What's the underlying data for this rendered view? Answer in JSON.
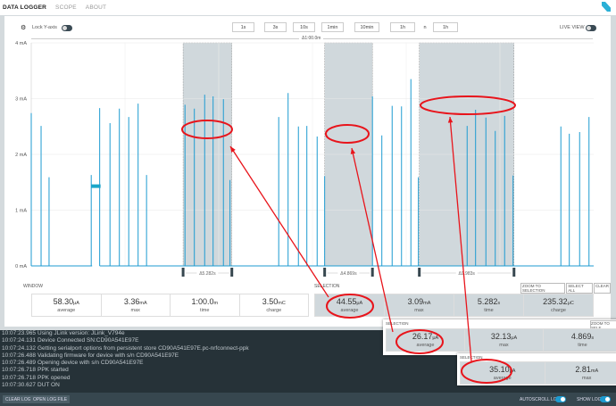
{
  "nav": {
    "tabs": [
      {
        "label": "DATA LOGGER",
        "active": true
      },
      {
        "label": "SCOPE"
      },
      {
        "label": "ABOUT"
      }
    ]
  },
  "toolbar": {
    "lock_y_label": "Lock Y-axis",
    "lock_y_on": false,
    "live_view_label": "LIVE VIEW",
    "live_view_on": false,
    "time_buttons": [
      "1s",
      "3s",
      "10s",
      "1min",
      "10min",
      "1h"
    ],
    "extra_buttons": [
      "n",
      "1h"
    ],
    "window_span": "Δ1:00.0m"
  },
  "chart_data": {
    "type": "line",
    "ylabel": "",
    "yticks": [
      "0 mA",
      "1 mA",
      "2 mA",
      "3 mA",
      "4 mA"
    ],
    "ylim": [
      0,
      4
    ],
    "xlim": [
      0,
      60
    ],
    "x_unit": "s",
    "grid": true,
    "color": "#1d9bd1",
    "spikes": [
      [
        0,
        2.74
      ],
      [
        1.05,
        2.51
      ],
      [
        1.9,
        1.59
      ],
      [
        6.4,
        1.63
      ],
      [
        7.3,
        2.83
      ],
      [
        8.4,
        2.56
      ],
      [
        9.4,
        2.82
      ],
      [
        10.4,
        2.67
      ],
      [
        11.4,
        2.91
      ],
      [
        12.3,
        1.63
      ],
      [
        16.4,
        2.89
      ],
      [
        17.4,
        2.82
      ],
      [
        18.5,
        3.07
      ],
      [
        19.4,
        3.04
      ],
      [
        20.5,
        2.99
      ],
      [
        21.2,
        1.54
      ],
      [
        26.4,
        2.67
      ],
      [
        27.4,
        3.1
      ],
      [
        28.5,
        2.5
      ],
      [
        29.4,
        2.51
      ],
      [
        30.5,
        2.32
      ],
      [
        31.3,
        1.61
      ],
      [
        36.4,
        3.04
      ],
      [
        37.4,
        2.34
      ],
      [
        38.5,
        2.87
      ],
      [
        39.5,
        2.86
      ],
      [
        40.5,
        3.35
      ],
      [
        41.3,
        1.59
      ],
      [
        46.5,
        2.51
      ],
      [
        47.4,
        2.8
      ],
      [
        48.5,
        2.66
      ],
      [
        49.5,
        2.42
      ],
      [
        50.5,
        2.69
      ],
      [
        51.4,
        1.62
      ],
      [
        56.5,
        2.5
      ],
      [
        57.4,
        2.37
      ],
      [
        58.5,
        2.4
      ],
      [
        59.5,
        2.67
      ]
    ],
    "noise_block": {
      "from": 6.4,
      "to": 7.3,
      "level": 1.43
    },
    "selections": [
      {
        "from": 16.2,
        "to": 21.4,
        "label": "Δ5.282s"
      },
      {
        "from": 31.3,
        "to": 36.4,
        "label": "Δ4.869s"
      },
      {
        "from": 41.4,
        "to": 51.5,
        "label": "Δ9.983s"
      }
    ]
  },
  "window": {
    "title": "WINDOW",
    "stats": [
      {
        "value": "58.30",
        "unit": "μA",
        "label": "average"
      },
      {
        "value": "3.36",
        "unit": "mA",
        "label": "max"
      },
      {
        "value": "1:00.0",
        "unit": "m",
        "label": "time"
      },
      {
        "value": "3.50",
        "unit": "mC",
        "label": "charge"
      }
    ]
  },
  "selection": {
    "title": "SELECTION",
    "buttons": [
      "ZOOM TO SELECTION",
      "SELECT ALL",
      "CLEAR"
    ],
    "stats": [
      {
        "value": "44.55",
        "unit": "μA",
        "label": "average"
      },
      {
        "value": "3.09",
        "unit": "mA",
        "label": "max"
      },
      {
        "value": "5.282",
        "unit": "s",
        "label": "time"
      },
      {
        "value": "235.32",
        "unit": "μC",
        "label": "charge"
      }
    ]
  },
  "overlay1": {
    "title": "SELECTION",
    "button": "ZOOM TO SELE",
    "stats": [
      {
        "value": "26.17",
        "unit": "μA",
        "label": "average"
      },
      {
        "value": "32.13",
        "unit": "μA",
        "label": "max"
      },
      {
        "value": "4.869",
        "unit": "s",
        "label": "time"
      }
    ]
  },
  "overlay2": {
    "title": "SELECTION",
    "stats": [
      {
        "value": "35.10",
        "unit": "μA",
        "label": "average"
      },
      {
        "value": "2.81",
        "unit": "mA",
        "label": "max"
      }
    ]
  },
  "log": [
    {
      "t": "10:07:23.965",
      "m": "Using JLink version: JLink_V794e"
    },
    {
      "t": "10:07:24.131",
      "m": "Device Connected SN:CD90A541E97E"
    },
    {
      "t": "10:07:24.132",
      "m": "Getting serialport options from persistent store CD90A541E97E.pc-nrfconnect-ppk"
    },
    {
      "t": "10:07:26.488",
      "m": "Validating firmware for device with s/n CD90A541E97E"
    },
    {
      "t": "10:07:26.489",
      "m": "Opening device with s/n CD90A541E97E"
    },
    {
      "t": "10:07:26.718",
      "m": "PPK started"
    },
    {
      "t": "10:07:26.718",
      "m": "PPK opened"
    },
    {
      "t": "10:07:30.627",
      "m": "DUT ON"
    }
  ],
  "bottom": {
    "clear_log": "CLEAR LOG",
    "open_log": "OPEN LOG FILE",
    "autoscroll_label": "AUTOSCROLL LOG",
    "autoscroll_on": true,
    "show_log_label": "SHOW LOG",
    "show_log_on": true
  },
  "colors": {
    "accent": "#1d9bd1",
    "annotation": "#e8141b",
    "selection_bg": "#d0d8dc"
  }
}
